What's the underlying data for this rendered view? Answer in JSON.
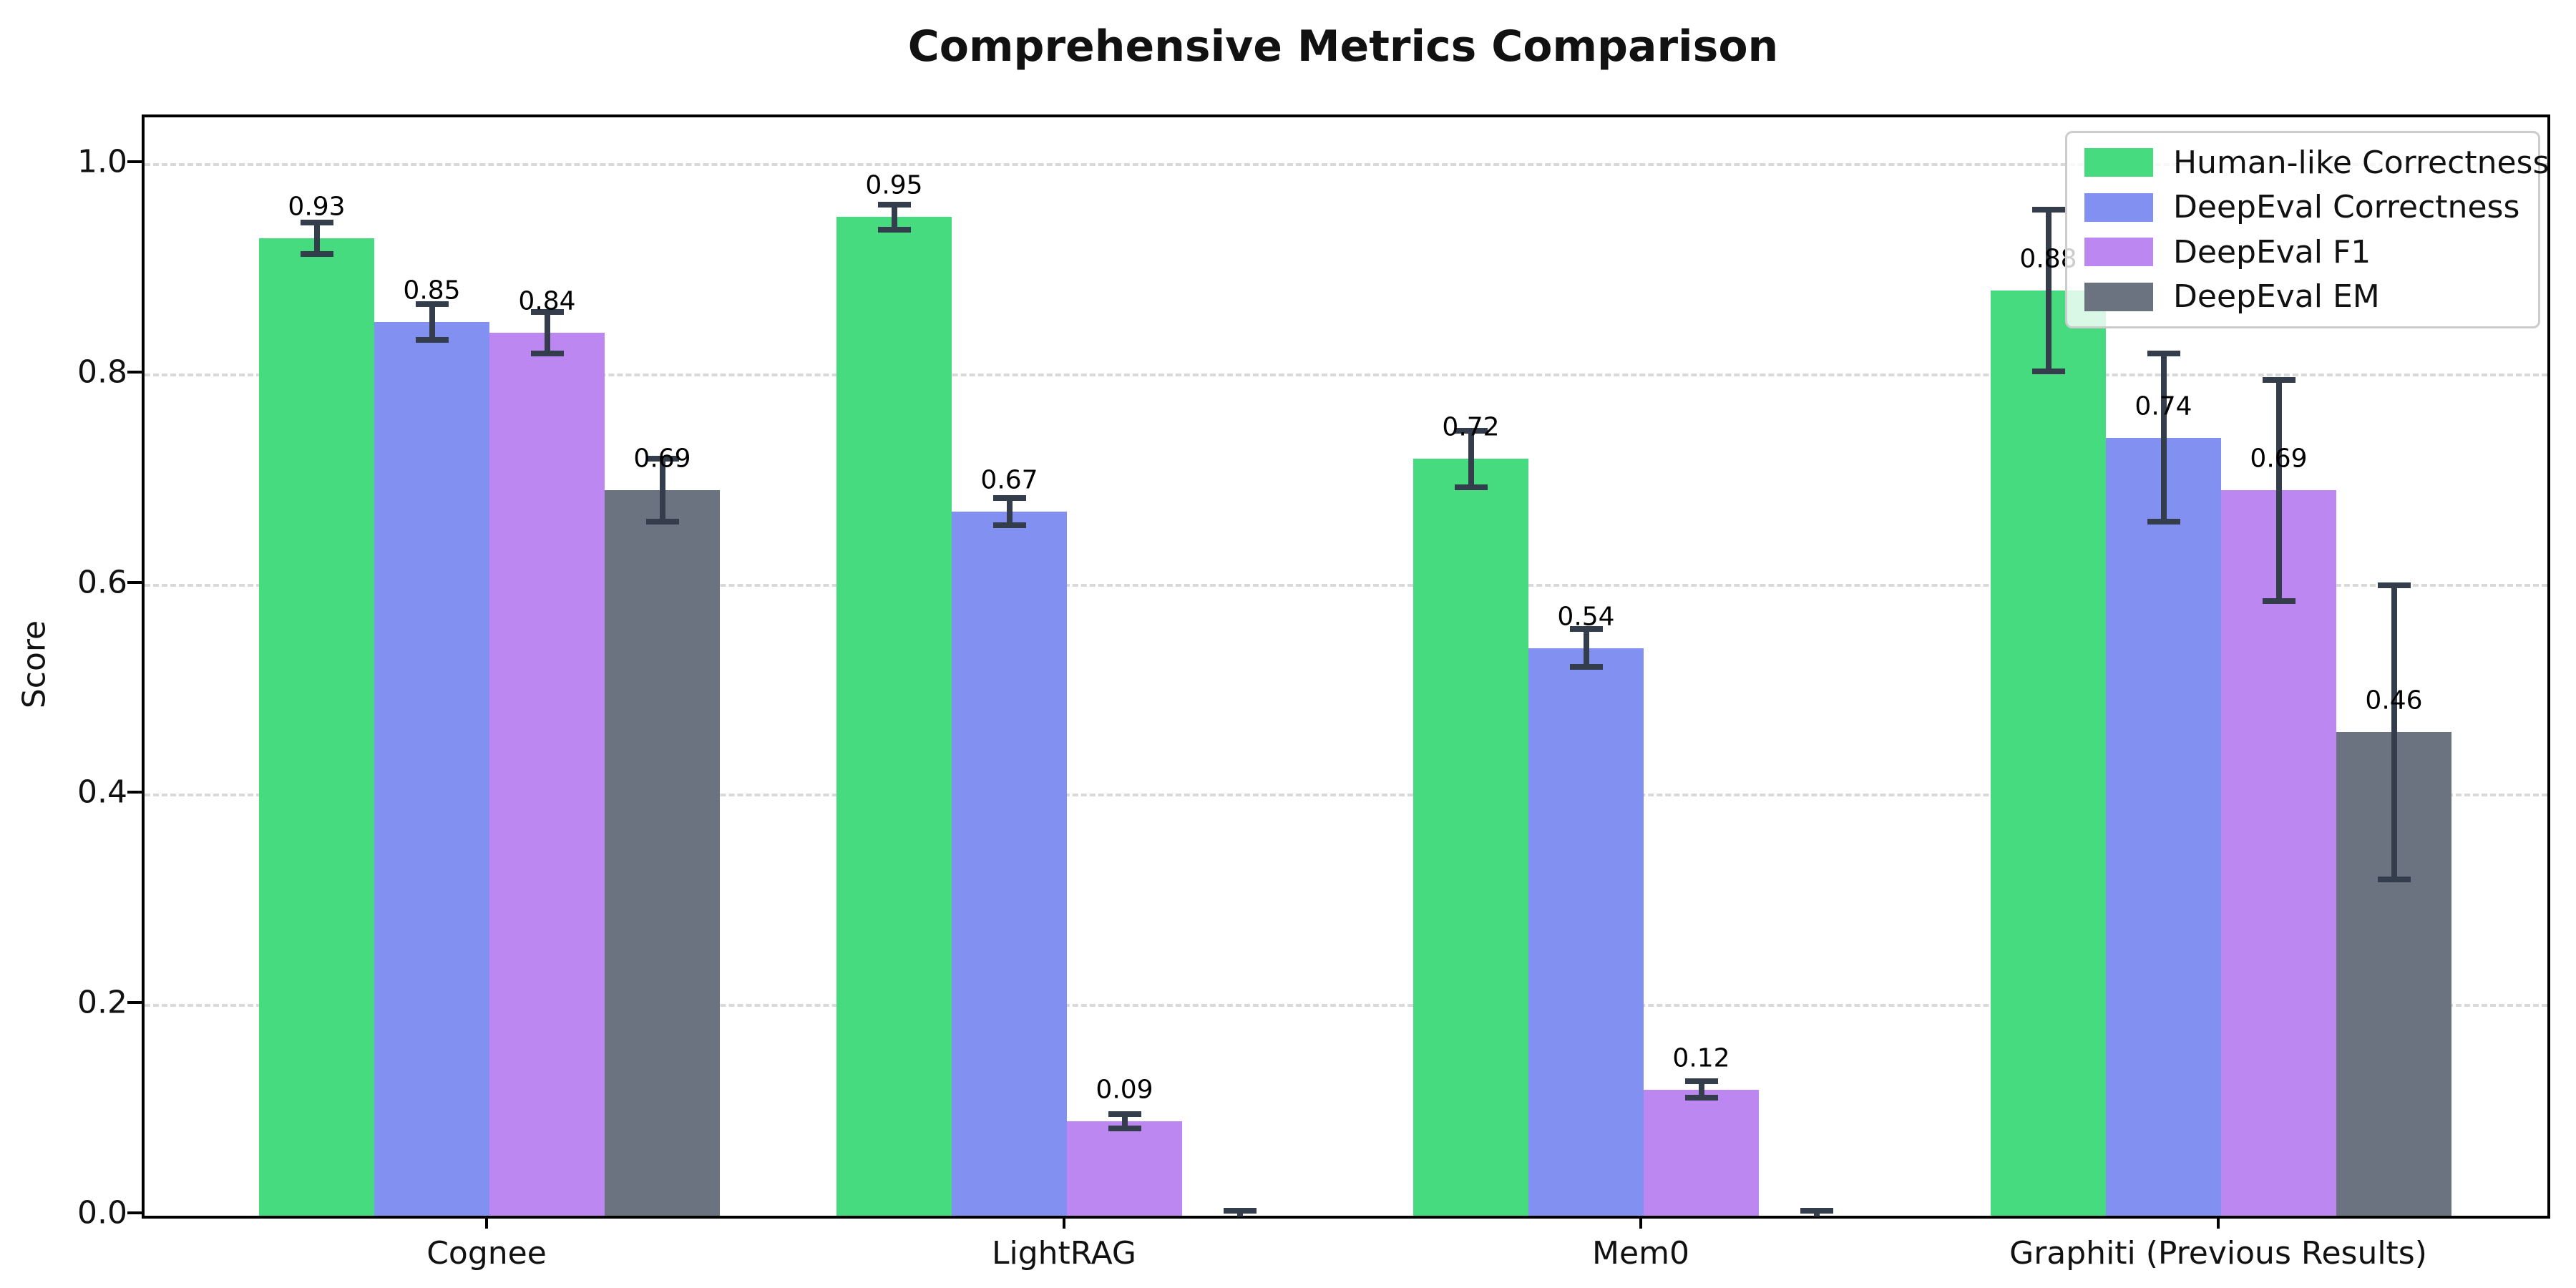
{
  "chart_data": {
    "type": "bar",
    "title": "Comprehensive Metrics Comparison",
    "xlabel": "",
    "ylabel": "Score",
    "ylim": [
      0,
      1.045
    ],
    "yticks": [
      "0.0",
      "0.2",
      "0.4",
      "0.6",
      "0.8",
      "1.0"
    ],
    "ytick_values": [
      0.0,
      0.2,
      0.4,
      0.6,
      0.8,
      1.0
    ],
    "grid": "horizontal-dashed",
    "grid_color": "#d9d9d9",
    "legend_position": "upper-right",
    "error_bar_color": "#333d4c",
    "categories": [
      "Cognee",
      "LightRAG",
      "Mem0",
      "Graphiti (Previous Results)"
    ],
    "series": [
      {
        "name": "Human-like Correctness",
        "color": "#47db80",
        "values": [
          0.93,
          0.95,
          0.72,
          0.88
        ],
        "errors": [
          0.015,
          0.012,
          0.027,
          0.077
        ],
        "labels": [
          "0.93",
          "0.95",
          "0.72",
          "0.88"
        ]
      },
      {
        "name": "DeepEval Correctness",
        "color": "#8290f2",
        "values": [
          0.85,
          0.67,
          0.54,
          0.74
        ],
        "errors": [
          0.017,
          0.013,
          0.018,
          0.08
        ],
        "labels": [
          "0.85",
          "0.67",
          "0.54",
          "0.74"
        ]
      },
      {
        "name": "DeepEval F1",
        "color": "#bd87f2",
        "values": [
          0.84,
          0.09,
          0.12,
          0.69
        ],
        "errors": [
          0.02,
          0.007,
          0.008,
          0.105
        ],
        "labels": [
          "0.84",
          "0.09",
          "0.12",
          "0.69"
        ]
      },
      {
        "name": "DeepEval EM",
        "color": "#6b7280",
        "values": [
          0.69,
          0.0,
          0.0,
          0.46
        ],
        "errors": [
          0.03,
          0.005,
          0.005,
          0.14
        ],
        "labels": [
          "0.69",
          "",
          "",
          "0.46"
        ]
      }
    ]
  }
}
